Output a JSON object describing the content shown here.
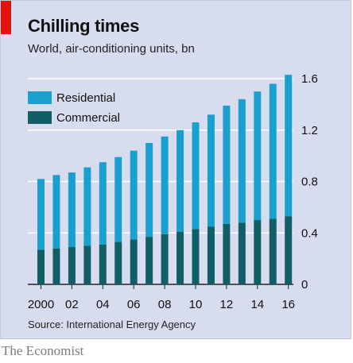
{
  "title": "Chilling times",
  "subtitle": "World, air-conditioning units, bn",
  "source": "Source: International Energy Agency",
  "brand": "The Economist",
  "colors": {
    "residential": "#1aa0cf",
    "commercial": "#115e67",
    "background": "#d8dcef",
    "gridline": "#ffffff",
    "accent": "#e3120b"
  },
  "chart_data": {
    "type": "bar",
    "stacked": true,
    "categories": [
      "2000",
      "2001",
      "2002",
      "2003",
      "2004",
      "2005",
      "2006",
      "2007",
      "2008",
      "2009",
      "2010",
      "2011",
      "2012",
      "2013",
      "2014",
      "2015",
      "2016"
    ],
    "x_tick_labels": [
      "2000",
      "02",
      "04",
      "06",
      "08",
      "10",
      "12",
      "14",
      "16"
    ],
    "series": [
      {
        "name": "Commercial",
        "values": [
          0.27,
          0.28,
          0.29,
          0.3,
          0.31,
          0.33,
          0.35,
          0.37,
          0.39,
          0.41,
          0.43,
          0.45,
          0.47,
          0.48,
          0.5,
          0.51,
          0.53
        ]
      },
      {
        "name": "Residential",
        "values": [
          0.55,
          0.57,
          0.58,
          0.61,
          0.64,
          0.66,
          0.69,
          0.73,
          0.76,
          0.79,
          0.83,
          0.87,
          0.92,
          0.96,
          1.0,
          1.05,
          1.1
        ]
      }
    ],
    "totals": [
      0.82,
      0.85,
      0.87,
      0.91,
      0.95,
      0.99,
      1.04,
      1.1,
      1.15,
      1.2,
      1.26,
      1.32,
      1.39,
      1.44,
      1.5,
      1.56,
      1.63
    ],
    "ylim": [
      0,
      1.6
    ],
    "y_ticks": [
      "0",
      "0.4",
      "0.8",
      "1.2",
      "1.6"
    ],
    "y_axis_side": "right",
    "grid": true,
    "legend": {
      "placement": "top-left",
      "entries": [
        "Residential",
        "Commercial"
      ]
    }
  }
}
